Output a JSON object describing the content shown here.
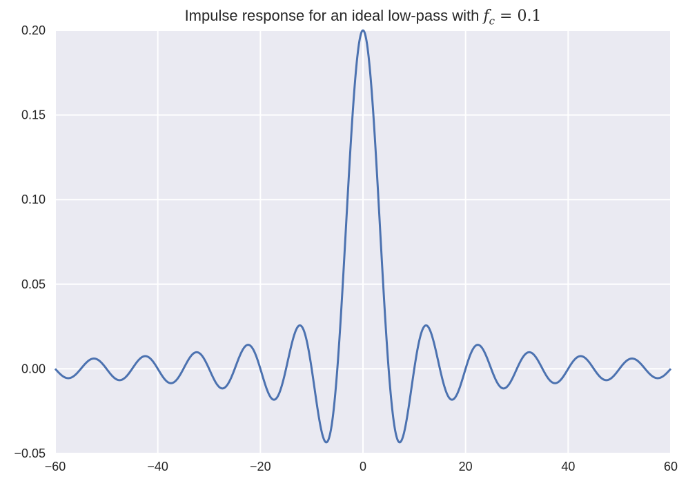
{
  "chart_data": {
    "type": "line",
    "title_text": "Impulse response for an ideal low-pass with",
    "title_math": {
      "var": "f",
      "sub": "c",
      "rest": "= 0.1"
    },
    "xlabel": "",
    "ylabel": "",
    "xlim": [
      -60,
      60
    ],
    "ylim": [
      -0.05,
      0.2
    ],
    "xticks": [
      -60,
      -40,
      -20,
      0,
      20,
      40,
      60
    ],
    "xtick_labels": [
      "−60",
      "−40",
      "−20",
      "0",
      "20",
      "40",
      "60"
    ],
    "yticks": [
      -0.05,
      0.0,
      0.05,
      0.1,
      0.15,
      0.2
    ],
    "ytick_labels": [
      "−0.05",
      "0.00",
      "0.05",
      "0.10",
      "0.15",
      "0.20"
    ],
    "grid": true,
    "series": [
      {
        "color": "#4c72b0",
        "x": [
          -60,
          -57.5,
          -55,
          -52.5,
          -50,
          -47.5,
          -45,
          -42.5,
          -40,
          -37.5,
          -35,
          -32.5,
          -30,
          -27.5,
          -25,
          -22.5,
          -20,
          -17.5,
          -15,
          -12.5,
          -10,
          -7.5,
          -5,
          -2.5,
          0,
          2.5,
          5,
          7.5,
          10,
          12.5,
          15,
          17.5,
          20,
          22.5,
          25,
          27.5,
          30,
          32.5,
          35,
          37.5,
          40,
          42.5,
          45,
          47.5,
          50,
          52.5,
          55,
          57.5,
          60
        ],
        "y": [
          0.0,
          -0.0055,
          0.0,
          0.006,
          0.0,
          -0.0067,
          0.0,
          0.0075,
          0.0,
          -0.0086,
          0.0,
          0.0098,
          0.0,
          -0.0116,
          0.0,
          0.0141,
          0.0,
          -0.0182,
          0.0,
          0.0255,
          0.0,
          -0.0424,
          0.0,
          0.1273,
          0.2,
          0.1273,
          0.0,
          -0.0424,
          0.0,
          0.0255,
          0.0,
          -0.0182,
          0.0,
          0.0141,
          0.0,
          -0.0116,
          0.0,
          0.0098,
          0.0,
          -0.0086,
          0.0,
          0.0075,
          0.0,
          -0.0067,
          0.0,
          0.006,
          0.0,
          -0.0055,
          0.0
        ]
      }
    ]
  }
}
